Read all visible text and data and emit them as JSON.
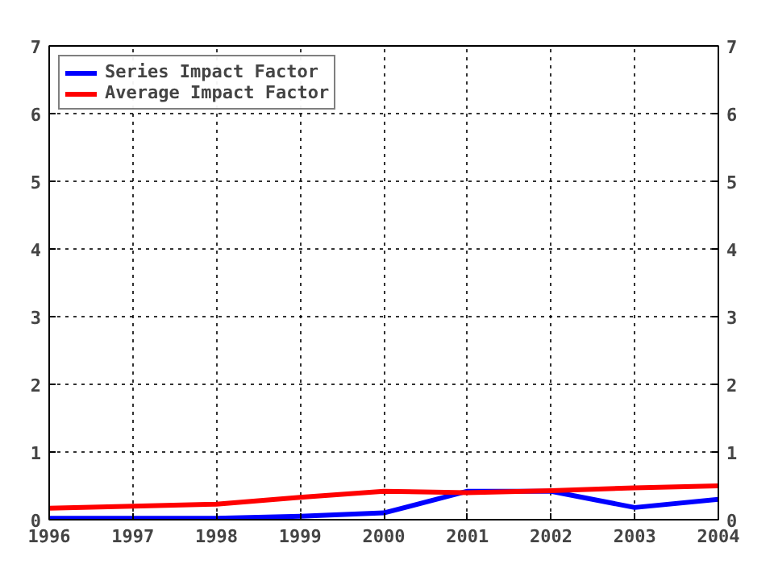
{
  "chart_data": {
    "type": "line",
    "x": [
      1996,
      1997,
      1998,
      1999,
      2000,
      2001,
      2002,
      2003,
      2004
    ],
    "series": [
      {
        "name": "Series Impact Factor",
        "color": "#0000ff",
        "values": [
          0.02,
          0.02,
          0.02,
          0.05,
          0.1,
          0.42,
          0.42,
          0.18,
          0.3
        ]
      },
      {
        "name": "Average Impact Factor",
        "color": "#ff0000",
        "values": [
          0.17,
          0.2,
          0.23,
          0.33,
          0.42,
          0.4,
          0.43,
          0.47,
          0.5
        ]
      }
    ],
    "xlim": [
      1996,
      2004
    ],
    "xticks": [
      1996,
      1997,
      1998,
      1999,
      2000,
      2001,
      2002,
      2003,
      2004
    ],
    "ylim": [
      0,
      7
    ],
    "yticks": [
      0,
      1,
      2,
      3,
      4,
      5,
      6,
      7
    ],
    "y2lim": [
      0,
      7
    ],
    "y2ticks": [
      0,
      1,
      2,
      3,
      4,
      5,
      6,
      7
    ],
    "grid": true,
    "legend": "top left",
    "line_style": "solid",
    "marker": "none"
  }
}
